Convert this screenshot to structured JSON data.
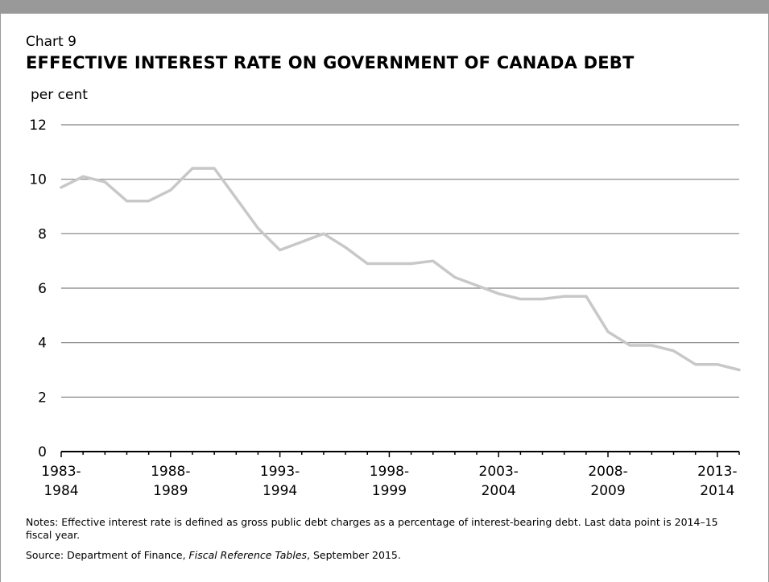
{
  "header": {
    "chart_number": "Chart 9",
    "title": "EFFECTIVE INTEREST RATE ON GOVERNMENT OF CANADA DEBT"
  },
  "footer": {
    "notes": "Notes: Effective interest rate is defined as gross public debt charges as a percentage of interest-bearing debt. Last data point is 2014–15 fiscal year.",
    "source_prefix": "Source: Department of Finance, ",
    "source_publication": "Fiscal Reference Tables",
    "source_suffix": ", September 2015."
  },
  "colors": {
    "line": "#c8c8c8",
    "grid": "#808080",
    "axis": "#000000",
    "frame": "#999999"
  },
  "chart_data": {
    "type": "line",
    "title": "EFFECTIVE INTEREST RATE ON GOVERNMENT OF CANADA DEBT",
    "ylabel": "per cent",
    "xlabel": "",
    "ylim": [
      0,
      12
    ],
    "yticks": [
      0,
      2,
      4,
      6,
      8,
      10,
      12
    ],
    "grid": true,
    "x_tick_labels": [
      {
        "year": "1983-1984",
        "line1": "1983-",
        "line2": "1984"
      },
      {
        "year": "1988-1989",
        "line1": "1988-",
        "line2": "1989"
      },
      {
        "year": "1993-1994",
        "line1": "1993-",
        "line2": "1994"
      },
      {
        "year": "1998-1999",
        "line1": "1998-",
        "line2": "1999"
      },
      {
        "year": "2003-2004",
        "line1": "2003-",
        "line2": "2004"
      },
      {
        "year": "2008-2009",
        "line1": "2008-",
        "line2": "2009"
      },
      {
        "year": "2013-2014",
        "line1": "2013-",
        "line2": "2014"
      }
    ],
    "x": [
      "1983-84",
      "1984-85",
      "1985-86",
      "1986-87",
      "1987-88",
      "1988-89",
      "1989-90",
      "1990-91",
      "1991-92",
      "1992-93",
      "1993-94",
      "1994-95",
      "1995-96",
      "1996-97",
      "1997-98",
      "1998-99",
      "1999-00",
      "2000-01",
      "2001-02",
      "2002-03",
      "2003-04",
      "2004-05",
      "2005-06",
      "2006-07",
      "2007-08",
      "2008-09",
      "2009-10",
      "2010-11",
      "2011-12",
      "2012-13",
      "2013-14",
      "2014-15"
    ],
    "series": [
      {
        "values": [
          9.7,
          10.1,
          9.9,
          9.2,
          9.2,
          9.6,
          10.4,
          10.4,
          9.3,
          8.2,
          7.4,
          7.7,
          8.0,
          7.5,
          6.9,
          6.9,
          6.9,
          7.0,
          6.4,
          6.1,
          5.8,
          5.6,
          5.6,
          5.7,
          5.7,
          4.4,
          3.9,
          3.9,
          3.7,
          3.2,
          3.2,
          3.0
        ]
      }
    ]
  }
}
